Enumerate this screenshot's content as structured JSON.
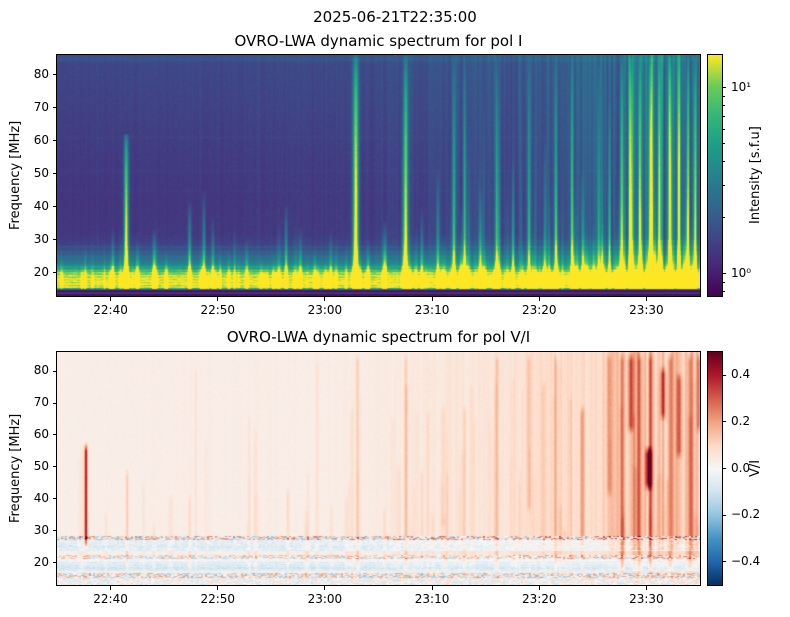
{
  "suptitle": "2025-06-21T22:35:00",
  "chart_data": [
    {
      "type": "heatmap",
      "title": "OVRO-LWA dynamic spectrum for pol I",
      "ylabel": "Frequency [MHz]",
      "x_range": [
        "22:35",
        "23:35"
      ],
      "x_ticks": [
        "22:40",
        "22:50",
        "23:00",
        "23:10",
        "23:20",
        "23:30"
      ],
      "y_range": [
        13,
        86
      ],
      "y_ticks": [
        20,
        30,
        40,
        50,
        60,
        70,
        80
      ],
      "colormap": "viridis",
      "colormap_stops": [
        [
          68,
          1,
          84
        ],
        [
          72,
          40,
          120
        ],
        [
          62,
          74,
          137
        ],
        [
          49,
          104,
          142
        ],
        [
          38,
          130,
          142
        ],
        [
          31,
          158,
          137
        ],
        [
          53,
          183,
          121
        ],
        [
          109,
          205,
          89
        ],
        [
          253,
          231,
          37
        ]
      ],
      "colorbar": {
        "label": "Intensity [s.f.u]",
        "scale": "log",
        "vmin": 0.76,
        "vmax": 15,
        "ticks": [
          {
            "label": "10¹",
            "value": 10
          },
          {
            "label": "10⁰",
            "value": 1
          }
        ],
        "minor_ticks": [
          0.8,
          0.9,
          2,
          3,
          4,
          5,
          6,
          7,
          8,
          9
        ]
      },
      "base_profile": [
        [
          86,
          0.26
        ],
        [
          84,
          0.23
        ],
        [
          70,
          0.21
        ],
        [
          55,
          0.185
        ],
        [
          42,
          0.17
        ],
        [
          32,
          0.175
        ],
        [
          28.5,
          0.21
        ],
        [
          26.5,
          0.28
        ],
        [
          24.5,
          0.38
        ],
        [
          23,
          0.46
        ],
        [
          22,
          0.55
        ],
        [
          21,
          0.7
        ],
        [
          20.2,
          0.84
        ],
        [
          19.2,
          0.93
        ],
        [
          18,
          0.96
        ],
        [
          16.8,
          0.98
        ],
        [
          15.6,
          0.93
        ],
        [
          15.1,
          0.6
        ],
        [
          14.8,
          0.1
        ],
        [
          14.4,
          0.05
        ],
        [
          13,
          0.05
        ]
      ],
      "h_lines": [
        [
          84.6,
          0.05,
          0.6
        ],
        [
          61,
          0.018,
          0.4
        ],
        [
          50.8,
          0.015,
          0.4
        ],
        [
          44.8,
          0.012,
          0.35
        ],
        [
          27.9,
          0.05,
          0.3
        ],
        [
          26.4,
          0.04,
          0.3
        ],
        [
          25,
          0.04,
          0.3
        ],
        [
          21.8,
          0.05,
          0.3
        ],
        [
          13.9,
          0.3,
          0.15
        ]
      ],
      "texture": {
        "seed": 1234,
        "n_minor_spikes": 170,
        "cluster_center": 0.92,
        "cluster_width": 0.06,
        "cluster_amp": 0.28
      },
      "bursts": [
        {
          "t": "22:40:10",
          "f": 34,
          "a": 0.5
        },
        {
          "t": "22:41:25",
          "f": 62,
          "a": 1.0,
          "w": 1.4
        },
        {
          "t": "22:42:30",
          "f": 30,
          "a": 0.45
        },
        {
          "t": "22:44:00",
          "f": 33,
          "a": 0.55
        },
        {
          "t": "22:45:10",
          "f": 27,
          "a": 0.4
        },
        {
          "t": "22:47:20",
          "f": 42,
          "a": 0.65
        },
        {
          "t": "22:48:40",
          "f": 45,
          "a": 0.6
        },
        {
          "t": "22:49:30",
          "f": 37,
          "a": 0.5
        },
        {
          "t": "22:51:00",
          "f": 27,
          "a": 0.35
        },
        {
          "t": "22:52:40",
          "f": 31,
          "a": 0.45
        },
        {
          "t": "22:54:00",
          "f": 25,
          "a": 0.3
        },
        {
          "t": "22:56:20",
          "f": 41,
          "a": 0.6
        },
        {
          "t": "22:57:40",
          "f": 34,
          "a": 0.5
        },
        {
          "t": "22:59:00",
          "f": 28,
          "a": 0.4
        },
        {
          "t": "23:00:30",
          "f": 33,
          "a": 0.45
        },
        {
          "t": "23:02:50",
          "f": 86,
          "a": 1.0,
          "w": 1.8
        },
        {
          "t": "23:04:00",
          "f": 30,
          "a": 0.5
        },
        {
          "t": "23:05:30",
          "f": 36,
          "a": 0.5
        },
        {
          "t": "23:07:30",
          "f": 86,
          "a": 0.95,
          "w": 1.5
        },
        {
          "t": "23:09:00",
          "f": 40,
          "a": 0.5
        },
        {
          "t": "23:10:30",
          "f": 52,
          "a": 0.55
        },
        {
          "t": "23:12:00",
          "f": 86,
          "a": 0.7
        },
        {
          "t": "23:13:00",
          "f": 86,
          "a": 0.65
        },
        {
          "t": "23:14:30",
          "f": 46,
          "a": 0.5
        },
        {
          "t": "23:16:00",
          "f": 86,
          "a": 0.7
        },
        {
          "t": "23:17:30",
          "f": 56,
          "a": 0.5
        },
        {
          "t": "23:19:00",
          "f": 86,
          "a": 0.6
        },
        {
          "t": "23:20:30",
          "f": 62,
          "a": 0.5
        },
        {
          "t": "23:21:30",
          "f": 86,
          "a": 0.65
        },
        {
          "t": "23:23:00",
          "f": 86,
          "a": 0.7
        },
        {
          "t": "23:24:00",
          "f": 52,
          "a": 0.5
        },
        {
          "t": "23:25:30",
          "f": 86,
          "a": 0.6
        },
        {
          "t": "23:26:30",
          "f": 72,
          "a": 0.55
        },
        {
          "t": "23:27:40",
          "f": 86,
          "a": 0.85
        },
        {
          "t": "23:28:30",
          "f": 86,
          "a": 0.95,
          "w": 1.4
        },
        {
          "t": "23:29:20",
          "f": 86,
          "a": 0.8
        },
        {
          "t": "23:30:20",
          "f": 86,
          "a": 0.9,
          "w": 1.4
        },
        {
          "t": "23:31:10",
          "f": 86,
          "a": 0.75
        },
        {
          "t": "23:32:10",
          "f": 86,
          "a": 0.95,
          "w": 1.4
        },
        {
          "t": "23:33:00",
          "f": 86,
          "a": 0.8
        },
        {
          "t": "23:33:50",
          "f": 86,
          "a": 0.9
        },
        {
          "t": "23:34:30",
          "f": 86,
          "a": 0.85
        }
      ]
    },
    {
      "type": "heatmap",
      "title": "OVRO-LWA dynamic spectrum for pol V/I",
      "ylabel": "Frequency [MHz]",
      "x_range": [
        "22:35",
        "23:35"
      ],
      "x_ticks": [
        "22:40",
        "22:50",
        "23:00",
        "23:10",
        "23:20",
        "23:30"
      ],
      "y_range": [
        13,
        86
      ],
      "y_ticks": [
        20,
        30,
        40,
        50,
        60,
        70,
        80
      ],
      "colormap": "RdBu_r",
      "colormap_stops": [
        [
          5,
          48,
          97
        ],
        [
          33,
          102,
          172
        ],
        [
          67,
          147,
          195
        ],
        [
          146,
          197,
          222
        ],
        [
          209,
          229,
          240
        ],
        [
          247,
          247,
          247
        ],
        [
          253,
          219,
          199
        ],
        [
          244,
          165,
          130
        ],
        [
          214,
          96,
          77
        ],
        [
          178,
          24,
          43
        ],
        [
          103,
          0,
          31
        ]
      ],
      "colorbar": {
        "label": "V/I",
        "scale": "linear",
        "vmin": -0.5,
        "vmax": 0.5,
        "ticks": [
          {
            "label": "0.4",
            "value": 0.4
          },
          {
            "label": "0.2",
            "value": 0.2
          },
          {
            "label": "0.0",
            "value": 0.0
          },
          {
            "label": "−0.2",
            "value": -0.2
          },
          {
            "label": "−0.4",
            "value": -0.4
          }
        ],
        "minor_ticks": []
      },
      "bands": [
        {
          "f1": 27.2,
          "f2": 28.35,
          "kind": "speckle",
          "amp": 0.5,
          "shift": 0
        },
        {
          "f1": 23.7,
          "f2": 27.2,
          "kind": "tint",
          "shift": -0.055,
          "noise": 0.08
        },
        {
          "f1": 21.1,
          "f2": 22.35,
          "kind": "speckle",
          "amp": 0.38,
          "shift": 0
        },
        {
          "f1": 19.6,
          "f2": 21.1,
          "kind": "tint",
          "shift": -0.02,
          "noise": 0.05
        },
        {
          "f1": 17.3,
          "f2": 19.6,
          "kind": "tint",
          "shift": -0.07,
          "noise": 0.07
        },
        {
          "f1": 15.2,
          "f2": 16.7,
          "kind": "speckle",
          "amp": 0.45,
          "shift": 0
        },
        {
          "f1": 13.0,
          "f2": 15.2,
          "kind": "speckle",
          "amp": 0.22,
          "shift": -0.01
        }
      ],
      "h_lines": [
        [
          25.0,
          -0.03,
          0.3
        ],
        [
          20.0,
          -0.06,
          0.25
        ],
        [
          18.3,
          -0.04,
          0.25
        ]
      ],
      "texture": {
        "seed": 99,
        "n_minor_spikes": 120,
        "cluster_center": 0.92,
        "cluster_width": 0.06,
        "cluster_amp": 0.1
      },
      "features": [
        {
          "t": "22:37:40",
          "f1": 24,
          "f2": 58,
          "a": 0.8,
          "w": 1.1
        },
        {
          "t": "22:41:30",
          "f1": 16,
          "f2": 50,
          "a": 0.22,
          "w": 1
        },
        {
          "t": "22:44:00",
          "f1": 16,
          "f2": 33,
          "a": 0.1,
          "w": 1
        },
        {
          "t": "22:47:20",
          "f1": 16,
          "f2": 42,
          "a": 0.14,
          "w": 1
        },
        {
          "t": "22:56:30",
          "f1": 16,
          "f2": 44,
          "a": 0.15,
          "w": 1
        },
        {
          "t": "23:03:00",
          "f1": 16,
          "f2": 86,
          "a": 0.2,
          "w": 1.4
        },
        {
          "t": "23:05:30",
          "f1": 16,
          "f2": 38,
          "a": 0.12,
          "w": 1
        },
        {
          "t": "23:07:30",
          "f1": 16,
          "f2": 86,
          "a": 0.18,
          "w": 1.2
        },
        {
          "t": "23:09:00",
          "f1": 16,
          "f2": 50,
          "a": 0.13,
          "w": 1
        },
        {
          "t": "23:11:00",
          "f1": 30,
          "f2": 70,
          "a": 0.12,
          "w": 1.5
        },
        {
          "t": "23:13:00",
          "f1": 16,
          "f2": 70,
          "a": 0.15,
          "w": 1.2
        },
        {
          "t": "23:16:00",
          "f1": 16,
          "f2": 86,
          "a": 0.17,
          "w": 1.3
        },
        {
          "t": "23:19:00",
          "f1": 35,
          "f2": 86,
          "a": 0.15,
          "w": 1.5
        },
        {
          "t": "23:21:30",
          "f1": 16,
          "f2": 86,
          "a": 0.17,
          "w": 1.3
        },
        {
          "t": "23:24:00",
          "f1": 25,
          "f2": 70,
          "a": 0.18,
          "w": 1.6
        },
        {
          "t": "23:26:30",
          "f1": 40,
          "f2": 86,
          "a": 0.2,
          "w": 1.8
        },
        {
          "t": "23:27:40",
          "f1": 16,
          "f2": 86,
          "a": 0.25,
          "w": 1.5
        },
        {
          "t": "23:28:30",
          "f1": 60,
          "f2": 86,
          "a": 0.4,
          "w": 2
        },
        {
          "t": "23:29:20",
          "f1": 16,
          "f2": 86,
          "a": 0.28,
          "w": 1.5
        },
        {
          "t": "23:30:10",
          "f1": 42,
          "f2": 57,
          "a": 0.8,
          "w": 2.2
        },
        {
          "t": "23:30:20",
          "f1": 16,
          "f2": 86,
          "a": 0.26,
          "w": 1.6
        },
        {
          "t": "23:31:30",
          "f1": 64,
          "f2": 82,
          "a": 0.45,
          "w": 2
        },
        {
          "t": "23:32:10",
          "f1": 16,
          "f2": 86,
          "a": 0.3,
          "w": 1.5
        },
        {
          "t": "23:33:00",
          "f1": 52,
          "f2": 80,
          "a": 0.35,
          "w": 1.8
        },
        {
          "t": "23:34:00",
          "f1": 16,
          "f2": 86,
          "a": 0.28,
          "w": 1.5
        },
        {
          "t": "23:34:50",
          "f1": 60,
          "f2": 86,
          "a": 0.3,
          "w": 1.5
        }
      ]
    }
  ]
}
